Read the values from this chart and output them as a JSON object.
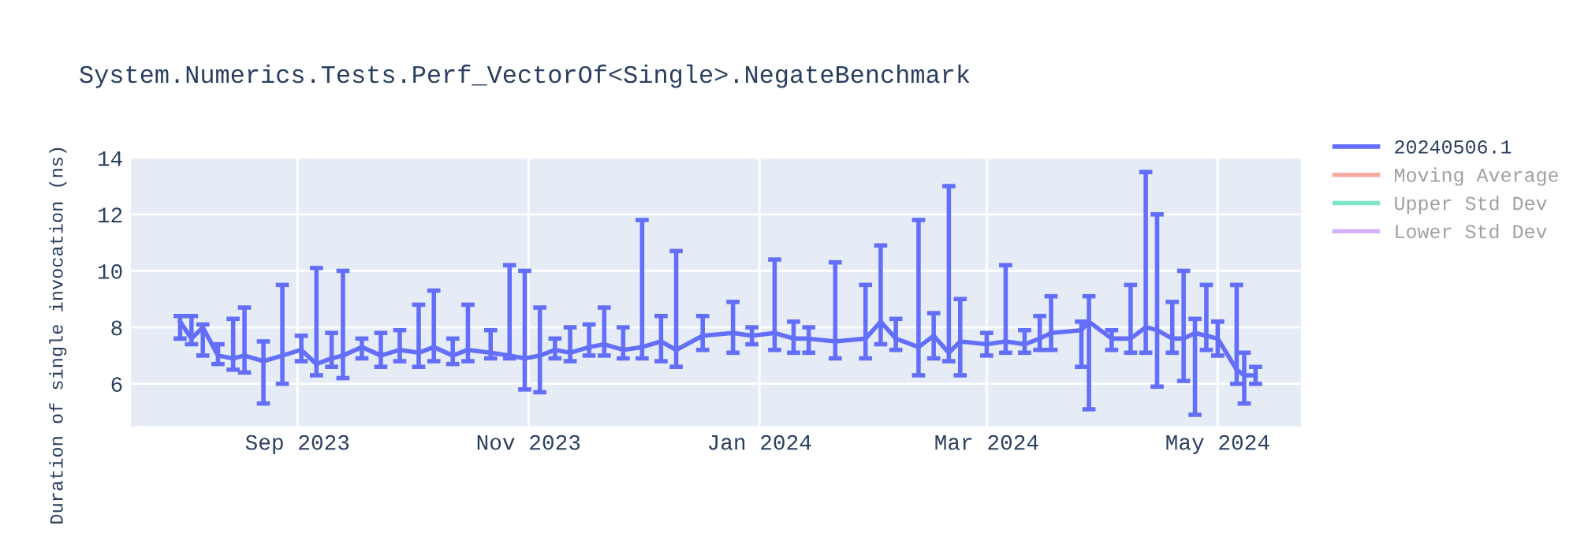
{
  "chart_data": {
    "type": "line",
    "title": "System.Numerics.Tests.Perf_VectorOf<Single>.NegateBenchmark",
    "ylabel": "Duration of single invocation (ns)",
    "xlim": [
      "2023-07-19",
      "2024-05-23"
    ],
    "ylim": [
      4.5,
      14
    ],
    "xticks": [
      {
        "value": "2023-09-01",
        "label": "Sep 2023"
      },
      {
        "value": "2023-11-01",
        "label": "Nov 2023"
      },
      {
        "value": "2024-01-01",
        "label": "Jan 2024"
      },
      {
        "value": "2024-03-01",
        "label": "Mar 2024"
      },
      {
        "value": "2024-05-01",
        "label": "May 2024"
      }
    ],
    "yticks": [
      6,
      8,
      10,
      12,
      14
    ],
    "grid": true,
    "legend": "top right",
    "marker": "none",
    "line_style": "solid",
    "series": [
      {
        "name": "20240506.1",
        "color": "#636efa",
        "x": [
          "2023-08-01",
          "2023-08-04",
          "2023-08-07",
          "2023-08-11",
          "2023-08-15",
          "2023-08-18",
          "2023-08-23",
          "2023-08-28",
          "2023-09-02",
          "2023-09-06",
          "2023-09-10",
          "2023-09-13",
          "2023-09-18",
          "2023-09-23",
          "2023-09-28",
          "2023-10-03",
          "2023-10-07",
          "2023-10-12",
          "2023-10-16",
          "2023-10-22",
          "2023-10-27",
          "2023-10-31",
          "2023-11-04",
          "2023-11-08",
          "2023-11-12",
          "2023-11-17",
          "2023-11-21",
          "2023-11-26",
          "2023-12-01",
          "2023-12-06",
          "2023-12-10",
          "2023-12-17",
          "2023-12-25",
          "2023-12-30",
          "2024-01-05",
          "2024-01-10",
          "2024-01-14",
          "2024-01-21",
          "2024-01-29",
          "2024-02-02",
          "2024-02-06",
          "2024-02-12",
          "2024-02-16",
          "2024-02-20",
          "2024-02-23",
          "2024-03-01",
          "2024-03-06",
          "2024-03-11",
          "2024-03-15",
          "2024-03-18",
          "2024-03-26",
          "2024-03-28",
          "2024-04-03",
          "2024-04-08",
          "2024-04-12",
          "2024-04-15",
          "2024-04-19",
          "2024-04-22",
          "2024-04-25",
          "2024-04-28",
          "2024-05-01",
          "2024-05-06",
          "2024-05-08",
          "2024-05-11"
        ],
        "values": [
          8.2,
          7.6,
          8.0,
          7.0,
          6.9,
          7.0,
          6.8,
          7.0,
          7.2,
          6.7,
          6.9,
          7.0,
          7.3,
          7.0,
          7.2,
          7.1,
          7.3,
          7.0,
          7.2,
          7.1,
          7.0,
          6.9,
          7.0,
          7.2,
          7.1,
          7.3,
          7.4,
          7.2,
          7.3,
          7.5,
          7.2,
          7.7,
          7.8,
          7.7,
          7.8,
          7.6,
          7.6,
          7.5,
          7.6,
          8.2,
          7.6,
          7.3,
          7.7,
          7.1,
          7.5,
          7.4,
          7.5,
          7.4,
          7.6,
          7.8,
          7.9,
          8.2,
          7.6,
          7.6,
          8.0,
          7.9,
          7.6,
          7.6,
          7.8,
          7.7,
          7.6,
          6.5,
          6.3,
          6.3
        ],
        "errors": [
          [
            7.6,
            8.4
          ],
          [
            7.4,
            8.4
          ],
          [
            7.0,
            8.1
          ],
          [
            6.7,
            7.4
          ],
          [
            6.5,
            8.3
          ],
          [
            6.4,
            8.7
          ],
          [
            5.3,
            7.5
          ],
          [
            6.0,
            9.5
          ],
          [
            6.8,
            7.7
          ],
          [
            6.3,
            10.1
          ],
          [
            6.6,
            7.8
          ],
          [
            6.2,
            10.0
          ],
          [
            6.9,
            7.6
          ],
          [
            6.6,
            7.8
          ],
          [
            6.8,
            7.9
          ],
          [
            6.6,
            8.8
          ],
          [
            6.8,
            9.3
          ],
          [
            6.7,
            7.6
          ],
          [
            6.8,
            8.8
          ],
          [
            6.9,
            7.9
          ],
          [
            6.9,
            10.2
          ],
          [
            5.8,
            10.0
          ],
          [
            5.7,
            8.7
          ],
          [
            6.9,
            7.6
          ],
          [
            6.8,
            8.0
          ],
          [
            7.0,
            8.1
          ],
          [
            7.0,
            8.7
          ],
          [
            6.9,
            8.0
          ],
          [
            6.9,
            11.8
          ],
          [
            6.8,
            8.4
          ],
          [
            6.6,
            10.7
          ],
          [
            7.2,
            8.4
          ],
          [
            7.1,
            8.9
          ],
          [
            7.4,
            8.0
          ],
          [
            7.2,
            10.4
          ],
          [
            7.1,
            8.2
          ],
          [
            7.1,
            8.0
          ],
          [
            6.9,
            10.3
          ],
          [
            6.9,
            9.5
          ],
          [
            7.4,
            10.9
          ],
          [
            7.2,
            8.3
          ],
          [
            6.3,
            11.8
          ],
          [
            6.9,
            8.5
          ],
          [
            6.8,
            13.0
          ],
          [
            6.3,
            9.0
          ],
          [
            7.0,
            7.8
          ],
          [
            7.1,
            10.2
          ],
          [
            7.1,
            7.9
          ],
          [
            7.2,
            8.4
          ],
          [
            7.2,
            9.1
          ],
          [
            6.6,
            8.2
          ],
          [
            5.1,
            9.1
          ],
          [
            7.2,
            7.9
          ],
          [
            7.1,
            9.5
          ],
          [
            7.1,
            13.5
          ],
          [
            5.9,
            12.0
          ],
          [
            7.1,
            8.9
          ],
          [
            6.1,
            10.0
          ],
          [
            4.9,
            8.3
          ],
          [
            7.2,
            9.5
          ],
          [
            7.0,
            8.2
          ],
          [
            6.0,
            9.5
          ],
          [
            5.3,
            7.1
          ],
          [
            6.0,
            6.6
          ]
        ]
      },
      {
        "name": "Moving Average",
        "color": "#ef553b"
      },
      {
        "name": "Upper Std Dev",
        "color": "#00cc96"
      },
      {
        "name": "Lower Std Dev",
        "color": "#ab63fa"
      }
    ]
  }
}
